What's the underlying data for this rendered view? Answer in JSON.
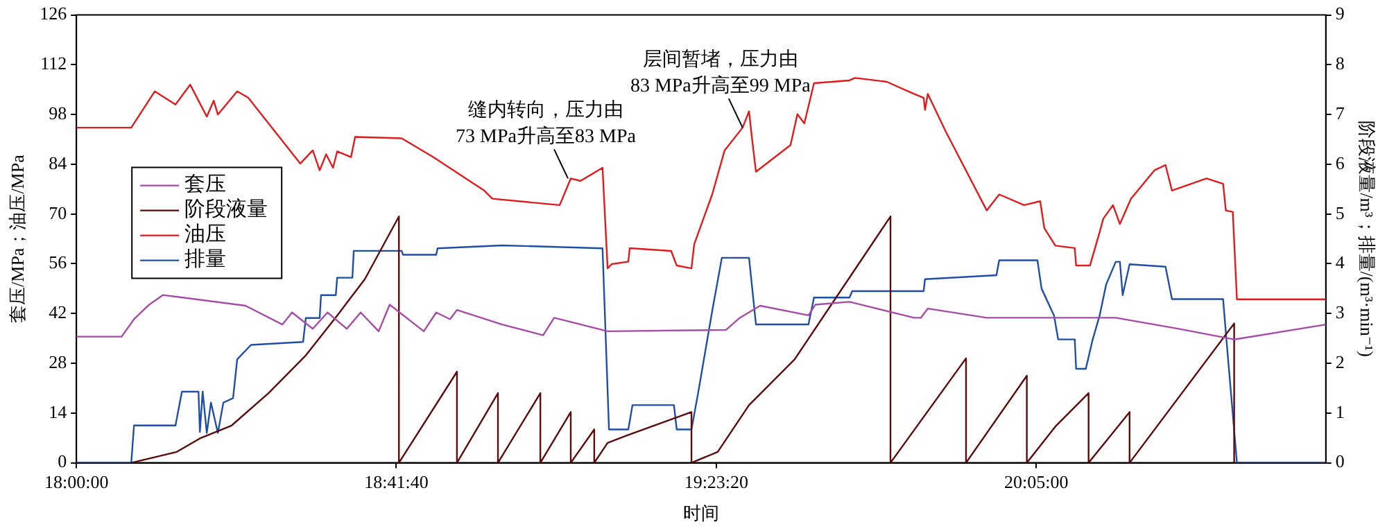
{
  "chart_data": {
    "type": "line",
    "xlabel": "时间",
    "ylabel": "套压/MPa；油压/MPa",
    "y2label": "阶段液量/m³；排量/(m³·min⁻¹)",
    "xlim": [
      18,
      20.712
    ],
    "xticks": [
      {
        "value": 18,
        "label": "18:00:00"
      },
      {
        "value": 18.6944,
        "label": "18:41:40"
      },
      {
        "value": 19.3889,
        "label": "19:23:20"
      },
      {
        "value": 20.0833,
        "label": "20:05:00"
      }
    ],
    "ylim": [
      0,
      126
    ],
    "yticks": [
      0,
      14,
      28,
      42,
      56,
      70,
      84,
      98,
      112,
      126
    ],
    "y2lim": [
      0,
      9
    ],
    "y2ticks": [
      0,
      1,
      2,
      3,
      4,
      5,
      6,
      7,
      8,
      9
    ],
    "grid": false,
    "legend": "top left",
    "marker": "none",
    "line_style": "solid",
    "annotations": [
      {
        "text": "缝内转向，压力由\n73 MPa升高至83 MPa",
        "x": 19.067,
        "y": 80
      },
      {
        "text": "层间暂堵，压力由\n83 MPa升高至99 MPa",
        "x": 19.446,
        "y": 94.3
      }
    ],
    "series": [
      {
        "name": "套压",
        "color": "#a64ca6",
        "x": [
          18.0,
          18.098,
          18.125,
          18.158,
          18.188,
          18.367,
          18.447,
          18.468,
          18.513,
          18.545,
          18.587,
          18.617,
          18.656,
          18.68,
          18.754,
          18.781,
          18.811,
          18.826,
          18.924,
          19.013,
          19.037,
          19.153,
          19.41,
          19.44,
          19.484,
          19.589,
          19.604,
          19.678,
          19.818,
          19.833,
          19.848,
          19.976,
          20.256,
          20.393,
          20.513,
          20.712
        ],
        "values": [
          35.5,
          35.5,
          40.4,
          44.5,
          47.2,
          44.2,
          38.9,
          42.3,
          37.7,
          42.3,
          37.7,
          42.3,
          37,
          44.5,
          37,
          42.3,
          40.4,
          43,
          38.9,
          35.9,
          40.8,
          37,
          37.4,
          40.8,
          44.2,
          41.5,
          44.5,
          45.3,
          40.8,
          40.8,
          43.4,
          40.8,
          40.8,
          37.7,
          34.7,
          38.9
        ]
      },
      {
        "name": "阶段液量",
        "color": "#5c0a0a",
        "axis": "y2",
        "x": [
          18.119,
          18.218,
          18.268,
          18.337,
          18.417,
          18.498,
          18.566,
          18.626,
          18.7,
          18.7,
          18.826,
          18.826,
          18.915,
          18.915,
          19.007,
          19.007,
          19.073,
          19.073,
          19.124,
          19.124,
          19.153,
          19.192,
          19.335,
          19.335,
          19.392,
          19.46,
          19.559,
          19.767,
          19.767,
          19.931,
          19.931,
          20.063,
          20.063,
          20.125,
          20.197,
          20.197,
          20.286,
          20.286,
          20.513,
          20.513
        ],
        "values": [
          0,
          0.22,
          0.49,
          0.75,
          1.4,
          2.16,
          2.96,
          3.69,
          4.95,
          0,
          1.83,
          0,
          1.4,
          0,
          1.4,
          0,
          1.02,
          0,
          0.67,
          0,
          0.4,
          0.54,
          1.02,
          0,
          0.22,
          1.16,
          2.08,
          4.95,
          0,
          2.1,
          0,
          1.75,
          0,
          0.73,
          1.4,
          0,
          1.02,
          0,
          2.8,
          0
        ]
      },
      {
        "name": "油压",
        "color": "#e31a1c",
        "x": [
          18.0,
          18.119,
          18.17,
          18.215,
          18.247,
          18.283,
          18.298,
          18.307,
          18.349,
          18.373,
          18.486,
          18.513,
          18.528,
          18.542,
          18.557,
          18.566,
          18.596,
          18.605,
          18.706,
          18.775,
          18.885,
          18.903,
          19.049,
          19.073,
          19.094,
          19.142,
          19.153,
          19.162,
          19.198,
          19.201,
          19.291,
          19.303,
          19.335,
          19.341,
          19.38,
          19.407,
          19.446,
          19.46,
          19.466,
          19.475,
          19.55,
          19.565,
          19.58,
          19.601,
          19.678,
          19.69,
          19.759,
          19.818,
          19.839,
          19.842,
          19.848,
          19.887,
          19.976,
          20.003,
          20.057,
          20.092,
          20.101,
          20.125,
          20.167,
          20.17,
          20.2,
          20.221,
          20.229,
          20.25,
          20.265,
          20.289,
          20.34,
          20.364,
          20.378,
          20.453,
          20.489,
          20.495,
          20.51,
          20.519,
          20.712
        ],
        "values": [
          94.3,
          94.3,
          104.5,
          100.8,
          106.4,
          97.4,
          101.9,
          98,
          104.5,
          102.7,
          84.2,
          87.9,
          82.3,
          86.8,
          83,
          87.6,
          86,
          91.7,
          91.3,
          86,
          76.6,
          74.3,
          72.5,
          80,
          79.3,
          83,
          54.7,
          55.9,
          56.6,
          60.4,
          59.6,
          55.5,
          54.7,
          61.5,
          75.5,
          87.9,
          94.3,
          98.9,
          91.7,
          81.9,
          89.4,
          98.1,
          95.5,
          106.8,
          107.6,
          108.3,
          107.2,
          103.8,
          102.7,
          99.3,
          103.8,
          93.2,
          71,
          75.5,
          72.5,
          73.6,
          66,
          61.1,
          60.4,
          55.5,
          55.5,
          64.9,
          68.7,
          72.5,
          67.2,
          74.3,
          82.3,
          83.8,
          76.6,
          80,
          78.5,
          71,
          70.6,
          46,
          46
        ]
      },
      {
        "name": "排量",
        "color": "#1f4ea8",
        "axis": "y2",
        "x": [
          18.0,
          18.119,
          18.125,
          18.215,
          18.229,
          18.265,
          18.268,
          18.274,
          18.283,
          18.292,
          18.307,
          18.319,
          18.34,
          18.349,
          18.379,
          18.492,
          18.498,
          18.528,
          18.531,
          18.563,
          18.566,
          18.599,
          18.602,
          18.706,
          18.709,
          18.781,
          18.784,
          18.924,
          19.142,
          19.156,
          19.198,
          19.207,
          19.297,
          19.303,
          19.335,
          19.35,
          19.38,
          19.401,
          19.46,
          19.469,
          19.475,
          19.589,
          19.601,
          19.678,
          19.684,
          19.839,
          19.842,
          19.997,
          20.003,
          20.086,
          20.095,
          20.122,
          20.131,
          20.167,
          20.17,
          20.191,
          20.206,
          20.221,
          20.235,
          20.256,
          20.265,
          20.271,
          20.286,
          20.364,
          20.378,
          20.489,
          20.495,
          20.519,
          20.712
        ],
        "values": [
          0,
          0,
          0.75,
          0.75,
          1.43,
          1.43,
          0.62,
          1.43,
          0.6,
          1.21,
          0.6,
          1.21,
          1.3,
          2.08,
          2.37,
          2.43,
          2.91,
          2.91,
          3.37,
          3.37,
          3.72,
          3.72,
          4.26,
          4.26,
          4.18,
          4.18,
          4.31,
          4.37,
          4.31,
          0.67,
          0.67,
          1.16,
          1.16,
          0.67,
          0.67,
          1.43,
          3.05,
          4.12,
          4.12,
          3.32,
          2.78,
          2.78,
          3.32,
          3.32,
          3.45,
          3.45,
          3.69,
          3.77,
          4.07,
          4.07,
          3.5,
          2.96,
          2.48,
          2.48,
          1.89,
          1.89,
          2.48,
          2.96,
          3.58,
          4.04,
          4.04,
          3.37,
          3.99,
          3.94,
          3.29,
          3.29,
          2.61,
          0,
          0
        ]
      }
    ]
  }
}
